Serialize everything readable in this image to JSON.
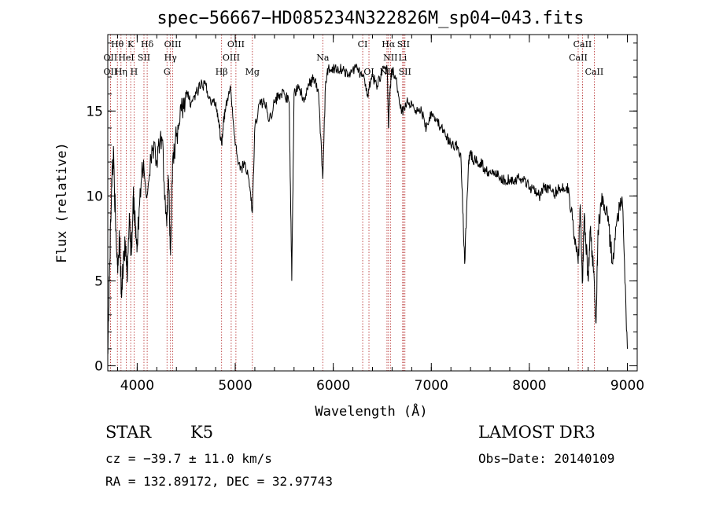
{
  "chart_data": {
    "type": "line",
    "title": "spec−56667−HD085234N322826M_sp04−043.fits",
    "xlabel": "Wavelength (Å)",
    "ylabel": "Flux (relative)",
    "xlim": [
      3700,
      9100
    ],
    "ylim": [
      -0.3,
      19.5
    ],
    "xticks": [
      4000,
      5000,
      6000,
      7000,
      8000,
      9000
    ],
    "yticks": [
      0,
      5,
      10,
      15
    ],
    "grid": false,
    "series": [
      {
        "color": "#000000",
        "x": [
          3700,
          3720,
          3740,
          3760,
          3780,
          3800,
          3820,
          3840,
          3860,
          3880,
          3900,
          3920,
          3940,
          3960,
          3980,
          4000,
          4050,
          4100,
          4150,
          4200,
          4250,
          4300,
          4320,
          4340,
          4360,
          4400,
          4450,
          4500,
          4550,
          4600,
          4650,
          4700,
          4750,
          4800,
          4830,
          4861,
          4880,
          4900,
          4950,
          5000,
          5050,
          5100,
          5150,
          5175,
          5200,
          5250,
          5300,
          5350,
          5400,
          5450,
          5500,
          5550,
          5577,
          5600,
          5650,
          5700,
          5750,
          5800,
          5850,
          5893,
          5920,
          5950,
          6000,
          6050,
          6100,
          6150,
          6200,
          6250,
          6300,
          6350,
          6400,
          6450,
          6500,
          6550,
          6563,
          6580,
          6600,
          6650,
          6700,
          6750,
          6800,
          6850,
          6900,
          6950,
          7000,
          7050,
          7100,
          7150,
          7200,
          7250,
          7300,
          7340,
          7380,
          7400,
          7450,
          7500,
          7550,
          7600,
          7650,
          7700,
          7750,
          7800,
          7850,
          7900,
          7950,
          8000,
          8050,
          8100,
          8150,
          8200,
          8250,
          8300,
          8350,
          8400,
          8450,
          8498,
          8520,
          8542,
          8560,
          8600,
          8620,
          8662,
          8680,
          8700,
          8750,
          8800,
          8850,
          8900,
          8950,
          9000
        ],
        "y": [
          1.0,
          6.0,
          11.0,
          12.5,
          8.0,
          6.0,
          7.5,
          4.0,
          6.5,
          7.0,
          5.0,
          9.0,
          6.5,
          10.0,
          8.5,
          7.0,
          12.0,
          10.0,
          13.0,
          12.0,
          13.5,
          8.5,
          11.0,
          6.5,
          12.0,
          13.5,
          15.0,
          16.0,
          15.5,
          16.0,
          16.5,
          16.5,
          15.5,
          15.5,
          14.5,
          13.0,
          14.5,
          15.0,
          16.5,
          13.0,
          11.5,
          12.0,
          10.5,
          9.0,
          14.0,
          15.5,
          15.5,
          14.5,
          15.5,
          16.0,
          16.0,
          15.5,
          5.0,
          16.0,
          16.5,
          15.5,
          16.5,
          17.0,
          16.0,
          11.0,
          16.5,
          17.5,
          17.5,
          17.5,
          17.5,
          17.0,
          17.5,
          17.5,
          17.0,
          16.0,
          17.0,
          16.5,
          17.5,
          17.5,
          14.0,
          16.5,
          17.5,
          16.5,
          15.0,
          15.5,
          15.5,
          15.0,
          15.0,
          14.0,
          15.0,
          14.5,
          14.0,
          13.5,
          13.0,
          13.0,
          12.5,
          6.0,
          12.0,
          12.5,
          12.0,
          12.0,
          11.5,
          11.5,
          11.5,
          11.0,
          11.0,
          11.0,
          11.0,
          11.0,
          11.0,
          10.5,
          10.5,
          10.0,
          10.5,
          10.5,
          10.0,
          10.5,
          10.5,
          10.5,
          8.0,
          6.0,
          9.5,
          5.0,
          9.0,
          5.0,
          8.0,
          5.0,
          2.5,
          8.0,
          10.0,
          8.5,
          6.0,
          9.0,
          9.5,
          1.0
        ]
      }
    ],
    "lines": [
      {
        "label": "Hθ",
        "x": 3798,
        "tier": 0
      },
      {
        "label": "K",
        "x": 3934,
        "tier": 0
      },
      {
        "label": "Hδ",
        "x": 4102,
        "tier": 0
      },
      {
        "label": "OIII",
        "x": 4363,
        "tier": 0
      },
      {
        "label": "OIII",
        "x": 5007,
        "tier": 0
      },
      {
        "label": "CI",
        "x": 6300,
        "tier": 0
      },
      {
        "label": "Hα",
        "x": 6563,
        "tier": 0
      },
      {
        "label": "SII",
        "x": 6716,
        "tier": 0
      },
      {
        "label": "CaII",
        "x": 8542,
        "tier": 0
      },
      {
        "label": "OII",
        "x": 3727,
        "tier": 1
      },
      {
        "label": "HeI",
        "x": 3889,
        "tier": 1
      },
      {
        "label": "SII",
        "x": 4069,
        "tier": 1
      },
      {
        "label": "Hγ",
        "x": 4340,
        "tier": 1
      },
      {
        "label": "OIII",
        "x": 4959,
        "tier": 1
      },
      {
        "label": "Na",
        "x": 5893,
        "tier": 1
      },
      {
        "label": "NII",
        "x": 6583,
        "tier": 1
      },
      {
        "label": "Li",
        "x": 6708,
        "tier": 1
      },
      {
        "label": "CaII",
        "x": 8498,
        "tier": 1
      },
      {
        "label": "OII",
        "x": 3727,
        "tier": 2
      },
      {
        "label": "Hη",
        "x": 3835,
        "tier": 2
      },
      {
        "label": "H",
        "x": 3968,
        "tier": 2
      },
      {
        "label": "G",
        "x": 4304,
        "tier": 2
      },
      {
        "label": "Hβ",
        "x": 4861,
        "tier": 2
      },
      {
        "label": "Mg",
        "x": 5175,
        "tier": 2
      },
      {
        "label": "OI",
        "x": 6364,
        "tier": 2
      },
      {
        "label": "NII",
        "x": 6548,
        "tier": 2
      },
      {
        "label": "SII",
        "x": 6731,
        "tier": 2
      },
      {
        "label": "CaII",
        "x": 8662,
        "tier": 2
      }
    ]
  },
  "info": {
    "class": "STAR",
    "subclass": "K5",
    "survey": "LAMOST DR3",
    "cz": "cz = −39.7 ± 11.0 km/s",
    "obsdate": "Obs−Date: 20140109",
    "radec": "RA = 132.89172, DEC =  32.97743"
  }
}
